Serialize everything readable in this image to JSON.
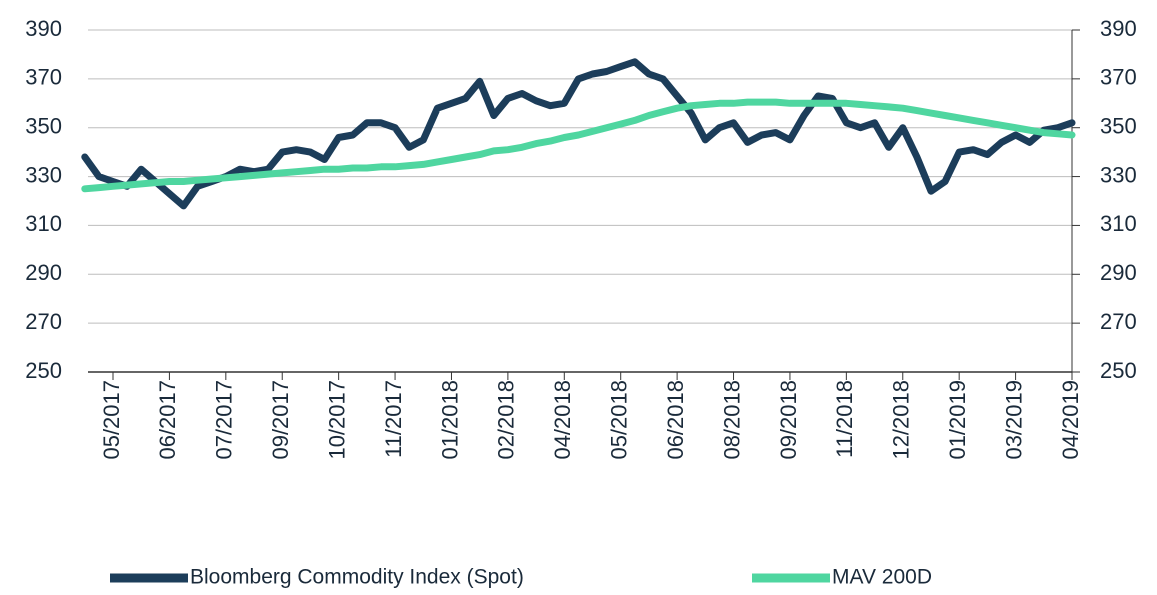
{
  "chart_data": {
    "type": "line",
    "categories": [
      null,
      null,
      "05/2017",
      null,
      null,
      null,
      "06/2017",
      null,
      null,
      null,
      "07/2017",
      null,
      null,
      null,
      "09/2017",
      null,
      null,
      null,
      "10/2017",
      null,
      null,
      null,
      "11/2017",
      null,
      null,
      null,
      "01/2018",
      null,
      null,
      null,
      "02/2018",
      null,
      null,
      null,
      "04/2018",
      null,
      null,
      null,
      "05/2018",
      null,
      null,
      null,
      "06/2018",
      null,
      null,
      null,
      "08/2018",
      null,
      null,
      null,
      "09/2018",
      null,
      null,
      null,
      "11/2018",
      null,
      null,
      null,
      "12/2018",
      null,
      null,
      null,
      "01/2019",
      null,
      null,
      null,
      "03/2019",
      null,
      null,
      null,
      "04/2019"
    ],
    "series": [
      {
        "name": "Bloomberg Commodity Index (Spot)",
        "color": "#1c3d5a",
        "values": [
          338,
          330,
          328,
          326,
          333,
          328,
          323,
          318,
          326,
          328,
          330,
          333,
          332,
          333,
          340,
          341,
          340,
          337,
          346,
          347,
          352,
          352,
          350,
          342,
          345,
          358,
          360,
          362,
          369,
          355,
          362,
          364,
          361,
          359,
          360,
          370,
          372,
          373,
          375,
          377,
          372,
          370,
          363,
          356,
          345,
          350,
          352,
          344,
          347,
          348,
          345,
          355,
          363,
          362,
          352,
          350,
          352,
          342,
          350,
          338,
          324,
          328,
          340,
          341,
          339,
          344,
          347,
          344,
          349,
          350,
          352
        ]
      },
      {
        "name": "MAV 200D",
        "color": "#4fd6a0",
        "values": [
          325,
          325.5,
          326,
          326.5,
          327,
          327.5,
          328,
          328,
          328.5,
          329,
          329.5,
          330,
          330.5,
          331,
          331.5,
          332,
          332.5,
          333,
          333,
          333.5,
          333.5,
          334,
          334,
          334.5,
          335,
          336,
          337,
          338,
          339,
          340.5,
          341,
          342,
          343.5,
          344.5,
          346,
          347,
          348.5,
          350,
          351.5,
          353,
          355,
          356.5,
          358,
          359,
          359.5,
          360,
          360,
          360.5,
          360.5,
          360.5,
          360,
          360,
          360,
          360,
          360,
          359.5,
          359,
          358.5,
          358,
          357,
          356,
          355,
          354,
          353,
          352,
          351,
          350,
          349,
          348,
          347.5,
          347
        ]
      }
    ],
    "ylim": [
      250,
      390
    ],
    "yticks": [
      250,
      270,
      290,
      310,
      330,
      350,
      370,
      390
    ],
    "y2lim": [
      250,
      390
    ],
    "y2ticks": [
      250,
      270,
      290,
      310,
      330,
      350,
      370,
      390
    ],
    "grid": true,
    "legend": "bottom"
  }
}
